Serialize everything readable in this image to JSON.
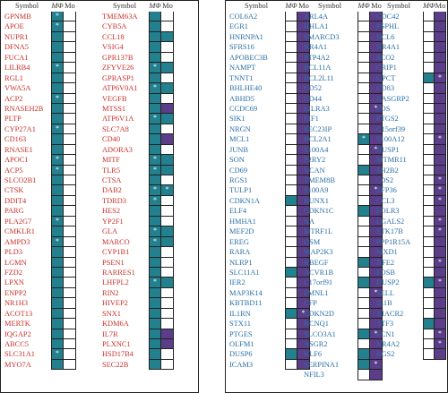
{
  "header": {
    "symbol": "Symbol",
    "mphi": "MΦ",
    "mo": "Mo"
  },
  "colors": {
    "red_text": "#c8312b",
    "blue_text": "#2a6fa6",
    "teal": "#23808f",
    "purple": "#5b3d8a"
  },
  "legend_codes": {
    "b": "blank",
    "t": "teal",
    "p": "purple",
    "t*": "teal with asterisk",
    "p*": "purple with asterisk"
  },
  "columns": [
    {
      "panel": "left",
      "color": "red",
      "rows": [
        {
          "s": "GPNMB",
          "a": "t*",
          "b": "b"
        },
        {
          "s": "APOE",
          "a": "t*",
          "b": "b"
        },
        {
          "s": "NUPR1",
          "a": "t",
          "b": "b"
        },
        {
          "s": "DFNA5",
          "a": "t",
          "b": "b"
        },
        {
          "s": "FUCA1",
          "a": "t",
          "b": "b"
        },
        {
          "s": "LILRB4",
          "a": "t*",
          "b": "b"
        },
        {
          "s": "RGL1",
          "a": "t",
          "b": "b"
        },
        {
          "s": "VWA5A",
          "a": "t",
          "b": "b"
        },
        {
          "s": "ACP2",
          "a": "t*",
          "b": "b"
        },
        {
          "s": "RNASEH2B",
          "a": "t",
          "b": "b"
        },
        {
          "s": "PLTP",
          "a": "t",
          "b": "b"
        },
        {
          "s": "CYP27A1",
          "a": "t*",
          "b": "b"
        },
        {
          "s": "CD163",
          "a": "t",
          "b": "b"
        },
        {
          "s": "RNASE1",
          "a": "t",
          "b": "b"
        },
        {
          "s": "APOC1",
          "a": "t*",
          "b": "b"
        },
        {
          "s": "ACP5",
          "a": "t*",
          "b": "b"
        },
        {
          "s": "SLCO2B1",
          "a": "t",
          "b": "b"
        },
        {
          "s": "CTSK",
          "a": "t",
          "b": "b"
        },
        {
          "s": "DDIT4",
          "a": "t",
          "b": "b"
        },
        {
          "s": "PARG",
          "a": "t",
          "b": "b"
        },
        {
          "s": "PLA2G7",
          "a": "t*",
          "b": "b"
        },
        {
          "s": "CMKLR1",
          "a": "t",
          "b": "b"
        },
        {
          "s": "AMPD3",
          "a": "t*",
          "b": "b"
        },
        {
          "s": "PLD3",
          "a": "t",
          "b": "b"
        },
        {
          "s": "LGMN",
          "a": "t",
          "b": "b"
        },
        {
          "s": "FZD2",
          "a": "t",
          "b": "b"
        },
        {
          "s": "LPXN",
          "a": "t",
          "b": "b"
        },
        {
          "s": "ENPP2",
          "a": "t",
          "b": "b"
        },
        {
          "s": "NR1H3",
          "a": "t",
          "b": "b"
        },
        {
          "s": "ACOT13",
          "a": "t",
          "b": "b"
        },
        {
          "s": "MERTK",
          "a": "t",
          "b": "b"
        },
        {
          "s": "IQGAP2",
          "a": "t",
          "b": "b"
        },
        {
          "s": "ABCC5",
          "a": "t",
          "b": "b"
        },
        {
          "s": "SLC31A1",
          "a": "t*",
          "b": "b"
        },
        {
          "s": "MYO7A",
          "a": "t",
          "b": "b"
        }
      ]
    },
    {
      "panel": "left",
      "color": "red",
      "rows": [
        {
          "s": "TMEM63A",
          "a": "t",
          "b": "b"
        },
        {
          "s": "CYB5A",
          "a": "t",
          "b": "b"
        },
        {
          "s": "CCL18",
          "a": "t",
          "b": "t"
        },
        {
          "s": "VSIG4",
          "a": "t",
          "b": "b"
        },
        {
          "s": "GPR137B",
          "a": "t",
          "b": "b"
        },
        {
          "s": "ZFYVE26",
          "a": "t*",
          "b": "t"
        },
        {
          "s": "GPRASP1",
          "a": "t",
          "b": "b"
        },
        {
          "s": "ATP6V0A1",
          "a": "t*",
          "b": "t"
        },
        {
          "s": "VEGFB",
          "a": "t",
          "b": "b"
        },
        {
          "s": "MTSS1",
          "a": "t",
          "b": "p"
        },
        {
          "s": "ATP6V1A",
          "a": "t*",
          "b": "t"
        },
        {
          "s": "SLC7A8",
          "a": "t",
          "b": "b"
        },
        {
          "s": "CD40",
          "a": "t",
          "b": "p"
        },
        {
          "s": "ADORA3",
          "a": "t",
          "b": "b"
        },
        {
          "s": "MITF",
          "a": "t*",
          "b": "t"
        },
        {
          "s": "TLR5",
          "a": "t*",
          "b": "t"
        },
        {
          "s": "CTSA",
          "a": "t",
          "b": "b"
        },
        {
          "s": "DAB2",
          "a": "t*",
          "b": "t*"
        },
        {
          "s": "TDRD3",
          "a": "t*",
          "b": "b"
        },
        {
          "s": "HES2",
          "a": "t",
          "b": "b"
        },
        {
          "s": "YP2F1",
          "a": "t",
          "b": "b"
        },
        {
          "s": "GLA",
          "a": "t*",
          "b": "t"
        },
        {
          "s": "MARCO",
          "a": "t*",
          "b": "t"
        },
        {
          "s": "CYP1B1",
          "a": "t",
          "b": "b"
        },
        {
          "s": "PSEN1",
          "a": "t",
          "b": "b"
        },
        {
          "s": "RARRES1",
          "a": "t",
          "b": "b"
        },
        {
          "s": "LHFPL2",
          "a": "t*",
          "b": "t"
        },
        {
          "s": "RIN2",
          "a": "t",
          "b": "b"
        },
        {
          "s": "HIVEP2",
          "a": "t",
          "b": "b"
        },
        {
          "s": "SNX1",
          "a": "t",
          "b": "b"
        },
        {
          "s": "KDM6A",
          "a": "t",
          "b": "b"
        },
        {
          "s": "IL7R",
          "a": "t",
          "b": "p"
        },
        {
          "s": "PLXNC1",
          "a": "t",
          "b": "p"
        },
        {
          "s": "HSD17B4",
          "a": "t",
          "b": "b"
        },
        {
          "s": "SEC22B",
          "a": "t",
          "b": "b"
        }
      ]
    },
    {
      "panel": "right",
      "color": "blue",
      "rows": [
        {
          "s": "COL6A2",
          "a": "b",
          "b": "p"
        },
        {
          "s": "EGR1",
          "a": "b",
          "b": "p"
        },
        {
          "s": "HNRNPA1",
          "a": "b",
          "b": "p"
        },
        {
          "s": "SFRS16",
          "a": "b",
          "b": "p"
        },
        {
          "s": "APOBEC3B",
          "a": "b",
          "b": "p"
        },
        {
          "s": "NAMPT",
          "a": "b",
          "b": "p"
        },
        {
          "s": "TNNT1",
          "a": "b",
          "b": "p"
        },
        {
          "s": "BHLHE40",
          "a": "b",
          "b": "p"
        },
        {
          "s": "ABHD5",
          "a": "b",
          "b": "p"
        },
        {
          "s": "CCDC69",
          "a": "b",
          "b": "p"
        },
        {
          "s": "SIK1",
          "a": "b",
          "b": "p"
        },
        {
          "s": "NRGN",
          "a": "b",
          "b": "p"
        },
        {
          "s": "MCL1",
          "a": "b",
          "b": "p"
        },
        {
          "s": "JUNB",
          "a": "b",
          "b": "p"
        },
        {
          "s": "SON",
          "a": "b",
          "b": "p"
        },
        {
          "s": "CD69",
          "a": "b",
          "b": "p"
        },
        {
          "s": "RGS1",
          "a": "b",
          "b": "p"
        },
        {
          "s": "TULP1",
          "a": "b",
          "b": "p"
        },
        {
          "s": "CDKN1A",
          "a": "t",
          "b": "p"
        },
        {
          "s": "ELF4",
          "a": "b",
          "b": "p"
        },
        {
          "s": "HMHA1",
          "a": "b",
          "b": "p"
        },
        {
          "s": "MEF2D",
          "a": "b",
          "b": "p"
        },
        {
          "s": "EREG",
          "a": "b",
          "b": "p"
        },
        {
          "s": "RARA",
          "a": "b",
          "b": "p"
        },
        {
          "s": "NLRP1",
          "a": "b",
          "b": "p"
        },
        {
          "s": "SLC11A1",
          "a": "t",
          "b": "p"
        },
        {
          "s": "IER2",
          "a": "b",
          "b": "p"
        },
        {
          "s": "MAP3K14",
          "a": "b",
          "b": "p"
        },
        {
          "s": "KBTBD11",
          "a": "b",
          "b": "p"
        },
        {
          "s": "IL1RN",
          "a": "t",
          "b": "p*"
        },
        {
          "s": "STX11",
          "a": "b",
          "b": "p"
        },
        {
          "s": "PTGES",
          "a": "b",
          "b": "p"
        },
        {
          "s": "OLFM1",
          "a": "b",
          "b": "p"
        },
        {
          "s": "DUSP6",
          "a": "t",
          "b": "p"
        },
        {
          "s": "ICAM3",
          "a": "b",
          "b": "p"
        }
      ]
    },
    {
      "panel": "right",
      "color": "blue",
      "rows": [
        {
          "s": "ARL4A",
          "a": "b",
          "b": "p"
        },
        {
          "s": "HHLA1",
          "a": "b",
          "b": "p"
        },
        {
          "s": "SMARCD3",
          "a": "b",
          "b": "p"
        },
        {
          "s": "NR4A1",
          "a": "b",
          "b": "p"
        },
        {
          "s": "PTP4A2",
          "a": "b",
          "b": "p"
        },
        {
          "s": "BCL11A",
          "a": "b",
          "b": "p"
        },
        {
          "s": "BCL2L11",
          "a": "b",
          "b": "p"
        },
        {
          "s": "CD52",
          "a": "b",
          "b": "p"
        },
        {
          "s": "CD44",
          "a": "b",
          "b": "p"
        },
        {
          "s": "LILRA3",
          "a": "b",
          "b": "p*"
        },
        {
          "s": "EIF1",
          "a": "b",
          "b": "p"
        },
        {
          "s": "SEC23IP",
          "a": "b",
          "b": "p"
        },
        {
          "s": "BCL2A1",
          "a": "t*",
          "b": "p"
        },
        {
          "s": "S100A4",
          "a": "b",
          "b": "p*"
        },
        {
          "s": "P2RY2",
          "a": "b",
          "b": "p"
        },
        {
          "s": "VCAN",
          "a": "t",
          "b": "p"
        },
        {
          "s": "TMEM8B",
          "a": "b",
          "b": "p"
        },
        {
          "s": "S100A9",
          "a": "b",
          "b": "p*"
        },
        {
          "s": "RUNX1",
          "a": "b",
          "b": "p"
        },
        {
          "s": "CDKN1C",
          "a": "t",
          "b": "p"
        },
        {
          "s": "NA",
          "a": "b",
          "b": "p"
        },
        {
          "s": "MTRF1L",
          "a": "b",
          "b": "p"
        },
        {
          "s": "OSM",
          "a": "b",
          "b": "p"
        },
        {
          "s": "MAP2K3",
          "a": "b",
          "b": "p"
        },
        {
          "s": "HBEGF",
          "a": "t",
          "b": "p"
        },
        {
          "s": "ACVR1B",
          "a": "b",
          "b": "p"
        },
        {
          "s": "C17orf91",
          "a": "t",
          "b": "p"
        },
        {
          "s": "FMNL1",
          "a": "b",
          "b": "p*"
        },
        {
          "s": "CFP",
          "a": "b",
          "b": "p"
        },
        {
          "s": "CDKN2D",
          "a": "b",
          "b": "p"
        },
        {
          "s": "KCNQ1",
          "a": "b",
          "b": "p"
        },
        {
          "s": "SLCO3A1",
          "a": "t",
          "b": "p*"
        },
        {
          "s": "ASGR2",
          "a": "b",
          "b": "p"
        },
        {
          "s": "KLF6",
          "a": "t",
          "b": "p"
        },
        {
          "s": "SERPINA1",
          "a": "t",
          "b": "p*"
        },
        {
          "s": "NFIL3",
          "a": "b",
          "b": "p"
        }
      ]
    },
    {
      "panel": "right",
      "color": "blue",
      "rows": [
        {
          "s": "CDC42",
          "a": "b",
          "b": "p"
        },
        {
          "s": "PSPHL",
          "a": "b",
          "b": "p"
        },
        {
          "s": "BCL6",
          "a": "b",
          "b": "p"
        },
        {
          "s": "NR4A1",
          "a": "b",
          "b": "p"
        },
        {
          "s": "SCO2",
          "a": "b",
          "b": "p"
        },
        {
          "s": "CRIP1",
          "a": "b",
          "b": "p"
        },
        {
          "s": "QPCT",
          "a": "t",
          "b": "p*"
        },
        {
          "s": "CD83",
          "a": "b",
          "b": "p"
        },
        {
          "s": "RASGRP2",
          "a": "b",
          "b": "p"
        },
        {
          "s": "FOS",
          "a": "b",
          "b": "p"
        },
        {
          "s": "PTGS2",
          "a": "b",
          "b": "p"
        },
        {
          "s": "C15orf39",
          "a": "b",
          "b": "p"
        },
        {
          "s": "S100A12",
          "a": "b",
          "b": "p*"
        },
        {
          "s": "DUSP1",
          "a": "b",
          "b": "p"
        },
        {
          "s": "MTMR11",
          "a": "b",
          "b": "p"
        },
        {
          "s": "SH2B2",
          "a": "b",
          "b": "p"
        },
        {
          "s": "G0S2",
          "a": "b",
          "b": "p*"
        },
        {
          "s": "ZFP36",
          "a": "b",
          "b": "p*"
        },
        {
          "s": "CCL3",
          "a": "b",
          "b": "p*"
        },
        {
          "s": "FOLR3",
          "a": "b",
          "b": "p"
        },
        {
          "s": "LGALS2",
          "a": "b",
          "b": "p*"
        },
        {
          "s": "STK17B",
          "a": "b",
          "b": "p*"
        },
        {
          "s": "PPP1R15A",
          "a": "b",
          "b": "p"
        },
        {
          "s": "MXD1",
          "a": "b",
          "b": "p"
        },
        {
          "s": "NFE2",
          "a": "b",
          "b": "p*"
        },
        {
          "s": "FOSB",
          "a": "b",
          "b": "p"
        },
        {
          "s": "DUSP2",
          "a": "t",
          "b": "p*"
        },
        {
          "s": "SELL",
          "a": "b",
          "b": "p"
        },
        {
          "s": "IL1B",
          "a": "b",
          "b": "p"
        },
        {
          "s": "NIACR2",
          "a": "b",
          "b": "p"
        },
        {
          "s": "ATF3",
          "a": "t",
          "b": "p"
        },
        {
          "s": "FCN1",
          "a": "b",
          "b": "p*"
        },
        {
          "s": "NR4A2",
          "a": "b",
          "b": "p*"
        },
        {
          "s": "RGS2",
          "a": "b",
          "b": "p"
        }
      ]
    }
  ]
}
